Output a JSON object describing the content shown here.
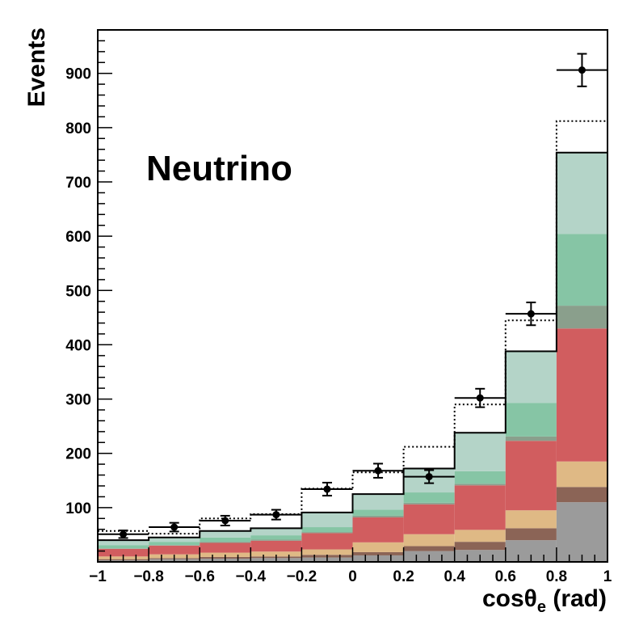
{
  "chart_data": {
    "type": "bar",
    "stacked": true,
    "annotation": "Neutrino",
    "xlabel": "cosθe (rad)",
    "xlabel_parts": {
      "main": "cosθ",
      "sub": "e",
      "unit": " (rad)"
    },
    "ylabel": "Events",
    "xlim": [
      -1,
      1
    ],
    "ylim": [
      0,
      980
    ],
    "x_tick_labels": [
      "−1",
      "−0.8",
      "−0.6",
      "−0.4",
      "−0.2",
      "0",
      "0.2",
      "0.4",
      "0.6",
      "0.8",
      "1"
    ],
    "x_tick_values": [
      -1,
      -0.8,
      -0.6,
      -0.4,
      -0.2,
      0,
      0.2,
      0.4,
      0.6,
      0.8,
      1
    ],
    "y_tick_labels": [
      "100",
      "200",
      "300",
      "400",
      "500",
      "600",
      "700",
      "800",
      "900"
    ],
    "y_tick_values": [
      100,
      200,
      300,
      400,
      500,
      600,
      700,
      800,
      900
    ],
    "bins": [
      -1,
      -0.8,
      -0.6,
      -0.4,
      -0.2,
      0,
      0.2,
      0.4,
      0.6,
      0.8,
      1
    ],
    "stack_components": [
      {
        "color": "#9b9b9b",
        "values": [
          3,
          5,
          6,
          7,
          8,
          12,
          20,
          22,
          40,
          110
        ]
      },
      {
        "color": "#8b6456",
        "values": [
          2,
          2,
          3,
          3,
          5,
          6,
          9,
          15,
          22,
          28
        ]
      },
      {
        "color": "#dfb985",
        "values": [
          5,
          7,
          8,
          9,
          10,
          18,
          22,
          22,
          33,
          47
        ]
      },
      {
        "color": "#d15d5f",
        "values": [
          14,
          16,
          18,
          20,
          30,
          46,
          55,
          82,
          128,
          245
        ]
      },
      {
        "color": "#8a9f8c",
        "values": [
          1,
          1,
          2,
          2,
          2,
          3,
          3,
          3,
          8,
          42
        ]
      },
      {
        "color": "#86c5a5",
        "values": [
          6,
          6,
          8,
          8,
          9,
          11,
          19,
          23,
          62,
          132
        ]
      },
      {
        "color": "#b4d4c8",
        "values": [
          9,
          8,
          12,
          13,
          27,
          29,
          44,
          71,
          95,
          150
        ]
      }
    ],
    "stack_total": [
      40,
      45,
      57,
      62,
      91,
      125,
      172,
      238,
      388,
      754
    ],
    "dotted_line": [
      57,
      52,
      80,
      88,
      135,
      165,
      212,
      290,
      445,
      812
    ],
    "points": {
      "x": [
        -0.9,
        -0.7,
        -0.5,
        -0.3,
        -0.1,
        0.1,
        0.3,
        0.5,
        0.7,
        0.9
      ],
      "y": [
        51,
        64,
        76,
        87,
        134,
        168,
        157,
        302,
        457,
        906
      ],
      "yerr": [
        7,
        8,
        9,
        9,
        12,
        13,
        12,
        17,
        21,
        30
      ]
    }
  }
}
